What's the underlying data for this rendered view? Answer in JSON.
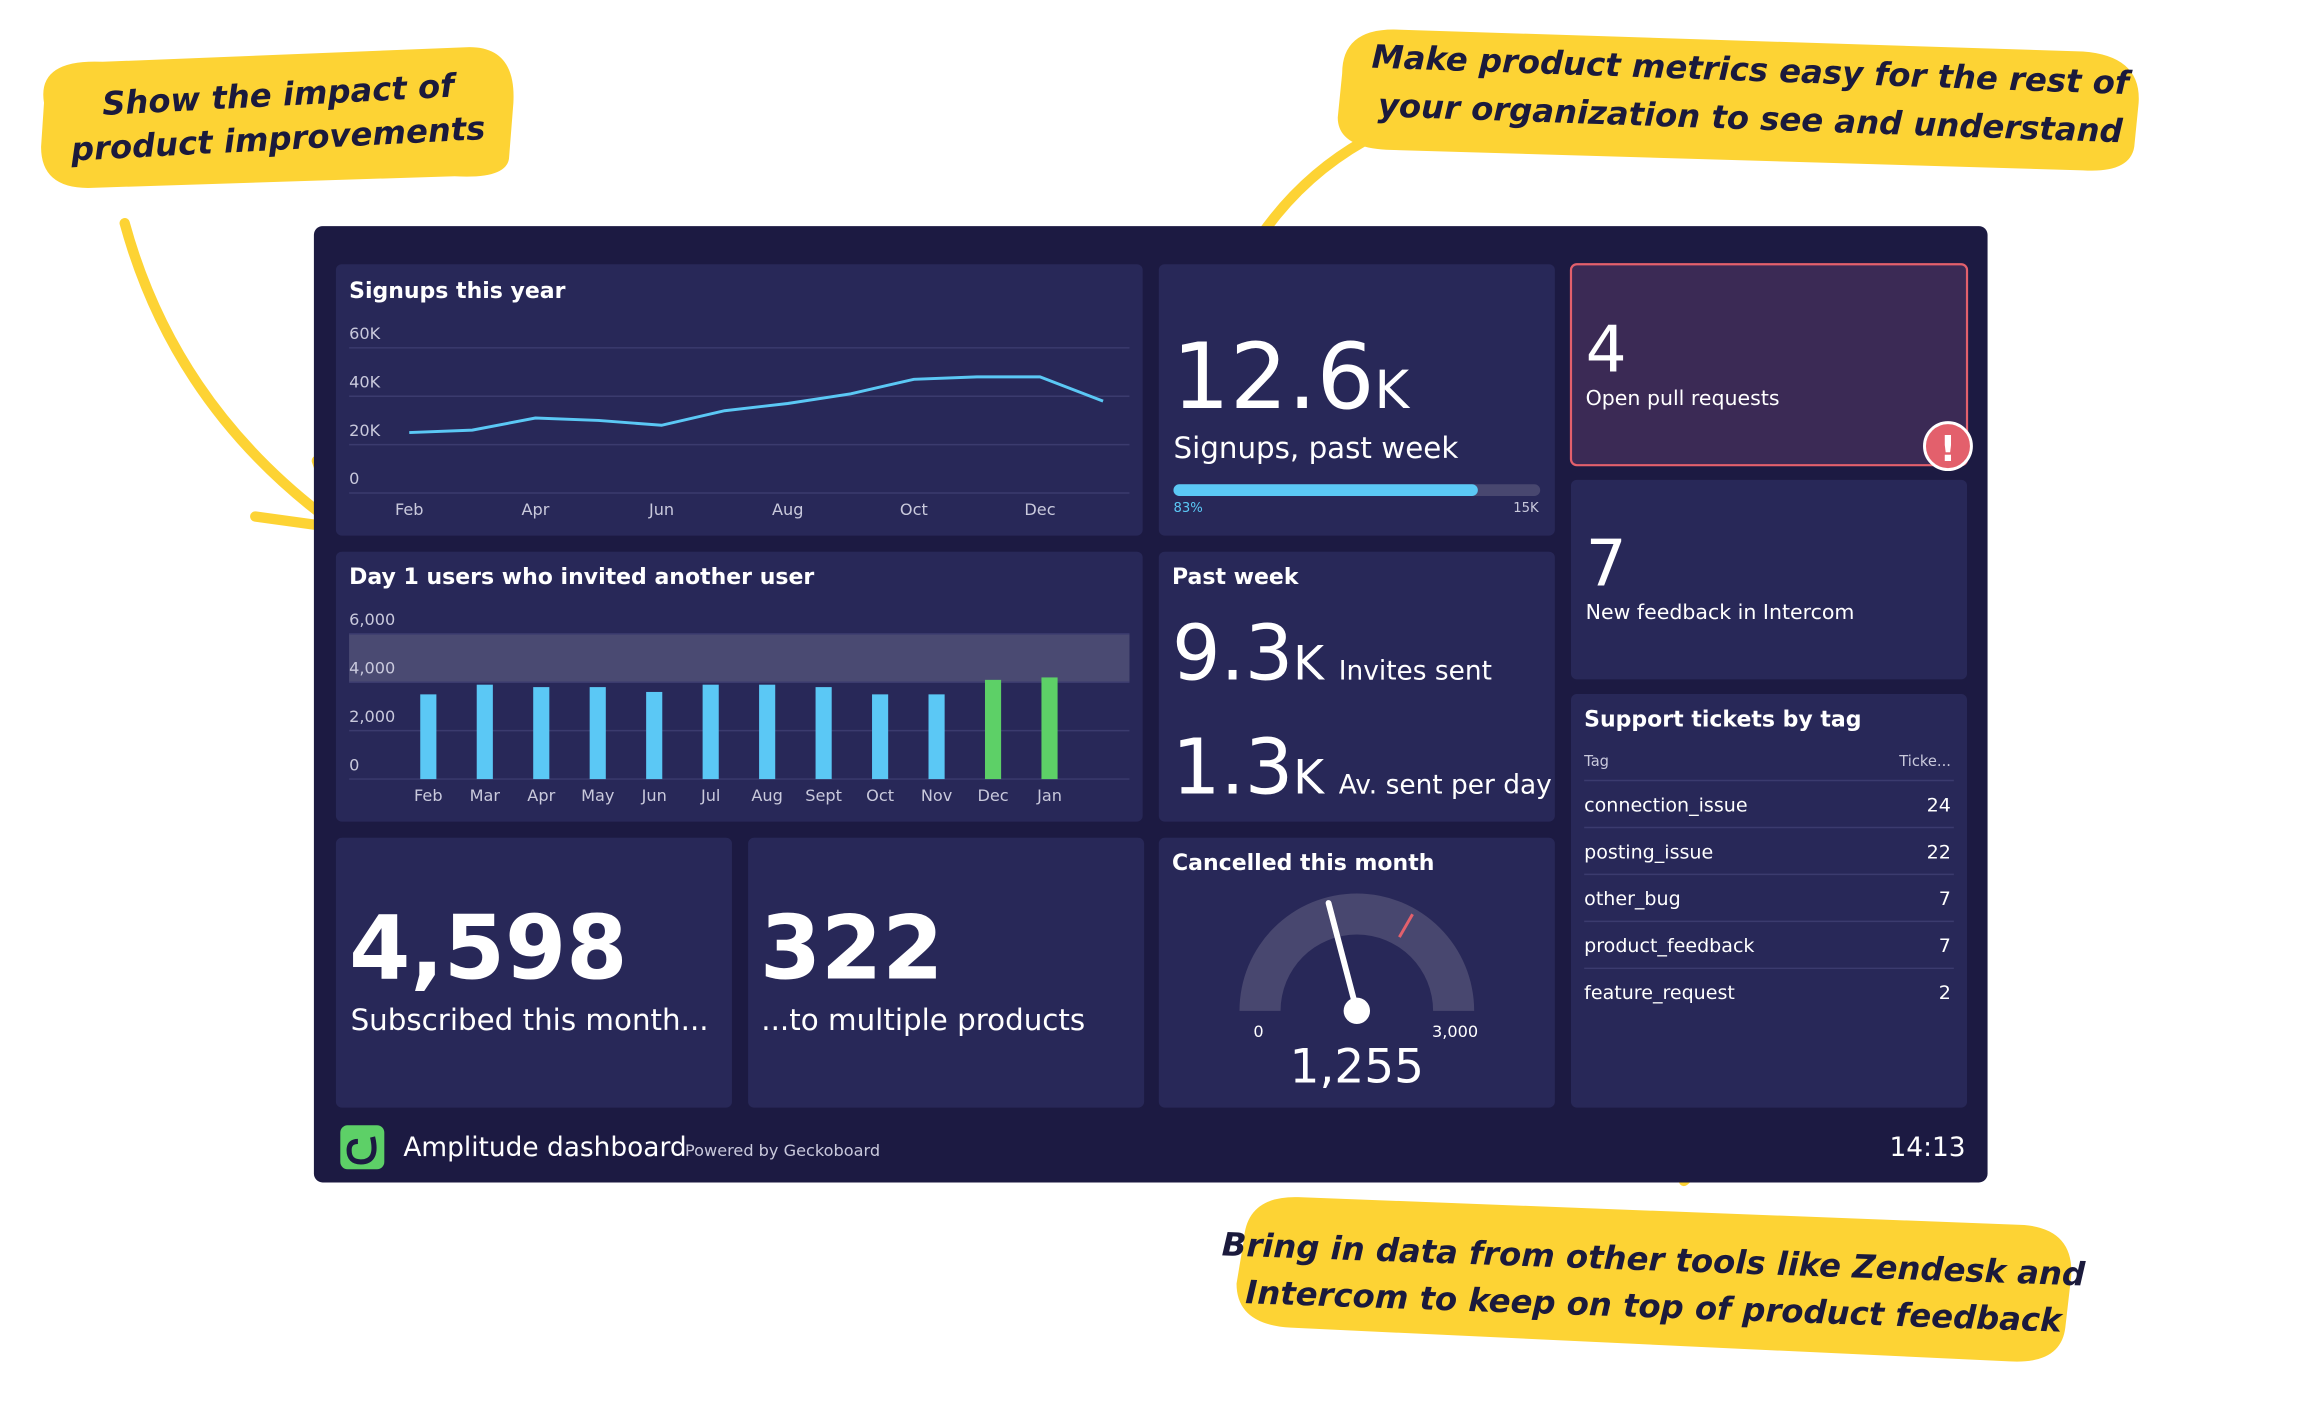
{
  "callouts": [
    {
      "lines": [
        "Show the impact of",
        "product improvements"
      ]
    },
    {
      "lines": [
        "Make product metrics easy for the rest of",
        "your organization to see and understand"
      ]
    },
    {
      "lines": [
        "Bring in data from other tools like Zendesk and",
        "Intercom to keep on top of product feedback"
      ]
    }
  ],
  "signups_chart": {
    "type": "line",
    "title": "Signups this year",
    "categories": [
      "Feb",
      null,
      "Apr",
      null,
      "Jun",
      null,
      "Aug",
      null,
      "Oct",
      null,
      "Dec",
      null
    ],
    "values": [
      25000,
      26000,
      31000,
      30000,
      28000,
      34000,
      37000,
      41000,
      47000,
      48000,
      48000,
      38000
    ],
    "color": "#5bc8f5",
    "ylim": [
      0,
      60000
    ],
    "yticks": [
      0,
      {
        "value": 20000,
        "label": "20K"
      },
      {
        "value": 40000,
        "label": "40K"
      },
      {
        "value": 60000,
        "label": "60K"
      }
    ],
    "grid": true
  },
  "invites_chart": {
    "type": "bar",
    "title": "Day 1 users who invited another user",
    "categories": [
      "Feb",
      "Mar",
      "Apr",
      "May",
      "Jun",
      "Jul",
      "Aug",
      "Sept",
      "Oct",
      "Nov",
      "Dec",
      "Jan"
    ],
    "values": [
      3500,
      3900,
      3800,
      3800,
      3600,
      3900,
      3900,
      3800,
      3500,
      3500,
      4100,
      4200
    ],
    "colors": [
      "#5bc8f5",
      "#5bc8f5",
      "#5bc8f5",
      "#5bc8f5",
      "#5bc8f5",
      "#5bc8f5",
      "#5bc8f5",
      "#5bc8f5",
      "#5bc8f5",
      "#5bc8f5",
      "#5dd067",
      "#5dd067"
    ],
    "target_band": [
      4000,
      6000
    ],
    "ylim": [
      0,
      6000
    ],
    "yticks": [
      0,
      {
        "value": 2000,
        "label": "2,000"
      },
      {
        "value": 4000,
        "label": "4,000"
      },
      {
        "value": 6000,
        "label": "6,000"
      }
    ],
    "grid": true
  },
  "signups_week": {
    "number": "12.6",
    "unit": "K",
    "label": "Signups, past week",
    "progress": {
      "value": 83,
      "label": "83%",
      "max_label": "15K"
    }
  },
  "pull_requests": {
    "number": "4",
    "label": "Open pull requests",
    "alert": "!"
  },
  "feedback": {
    "number": "7",
    "label": "New feedback in Intercom"
  },
  "past_week": {
    "title": "Past week",
    "items": [
      {
        "number": "9.3",
        "unit": "K",
        "label": "Invites sent"
      },
      {
        "number": "1.3",
        "unit": "K",
        "label": "Av. sent per day"
      }
    ]
  },
  "support": {
    "title": "Support tickets by tag",
    "columns": [
      "Tag",
      "Ticke..."
    ],
    "rows": [
      [
        "connection_issue",
        "24"
      ],
      [
        "posting_issue",
        "22"
      ],
      [
        "other_bug",
        "7"
      ],
      [
        "product_feedback",
        "7"
      ],
      [
        "feature_request",
        "2"
      ]
    ]
  },
  "subscribed": {
    "number": "4,598",
    "label": "Subscribed this month..."
  },
  "multiple": {
    "number": "322",
    "label": "...to multiple products"
  },
  "gauge": {
    "type": "gauge",
    "title": "Cancelled this month",
    "value": 1255,
    "value_label": "1,255",
    "min": 0,
    "max": 3000,
    "max_label": "3,000",
    "threshold": 2000
  },
  "footer": {
    "name": "Amplitude dashboard",
    "powered": "Powered by Geckoboard",
    "time": "14:13"
  }
}
